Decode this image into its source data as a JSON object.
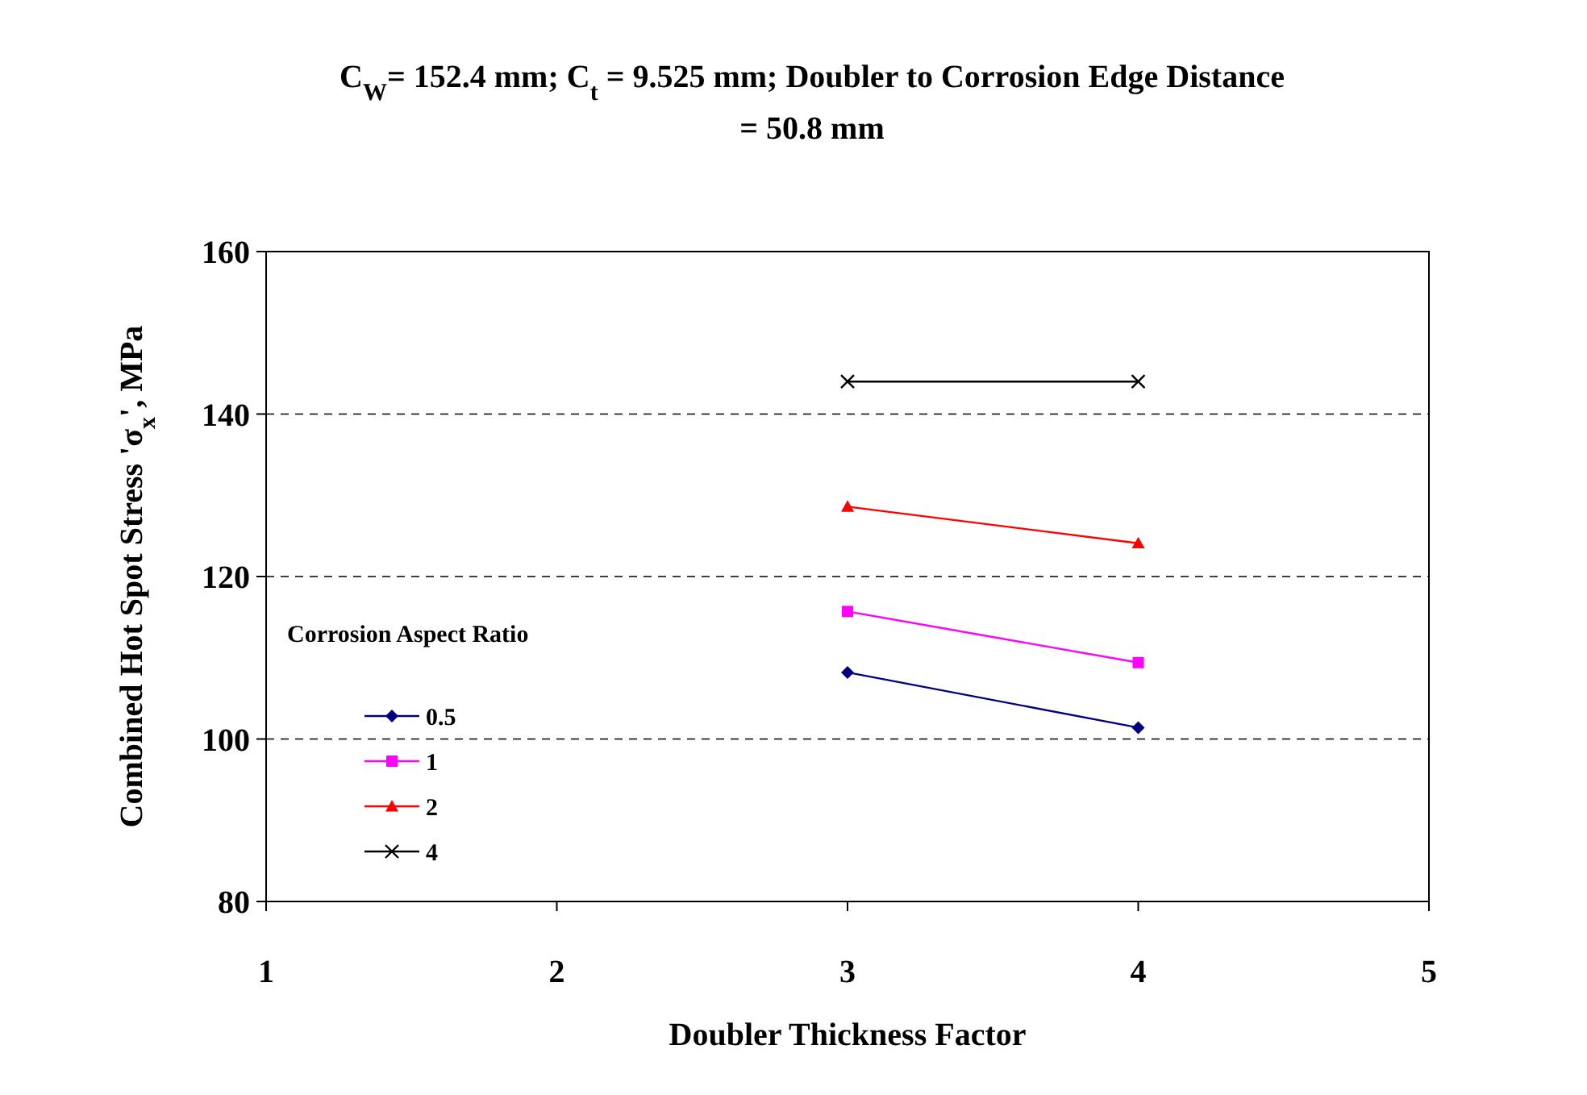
{
  "chart_data": {
    "type": "line",
    "title": "C$_{W}$= 152.4 mm; C$_{t}$ = 9.525 mm; Doubler to Corrosion Edge Distance = 50.8 mm",
    "xlabel": "Doubler Thickness Factor",
    "ylabel": "Combined Hot Spot Stress 'σ$_{x}$', MPa",
    "legend_title": "Corrosion Aspect Ratio",
    "x": [
      3,
      4
    ],
    "series": [
      {
        "name": "0.5",
        "color": "#000080",
        "values": [
          108.2,
          101.4
        ],
        "marker": "diamond"
      },
      {
        "name": "1",
        "color": "#ff00ff",
        "values": [
          115.7,
          109.4
        ],
        "marker": "square"
      },
      {
        "name": "2",
        "color": "#ff0000",
        "values": [
          128.6,
          124.1
        ],
        "marker": "triangle"
      },
      {
        "name": "4",
        "color": "#000000",
        "values": [
          144,
          144
        ],
        "marker": "cross"
      }
    ],
    "xlim": [
      1,
      5
    ],
    "xticks": [
      1,
      2,
      3,
      4,
      5
    ],
    "ylim": [
      80,
      160
    ],
    "yticks": [
      80,
      100,
      120,
      140,
      160
    ],
    "grid": "y",
    "legend": "left",
    "line_style": "solid"
  }
}
